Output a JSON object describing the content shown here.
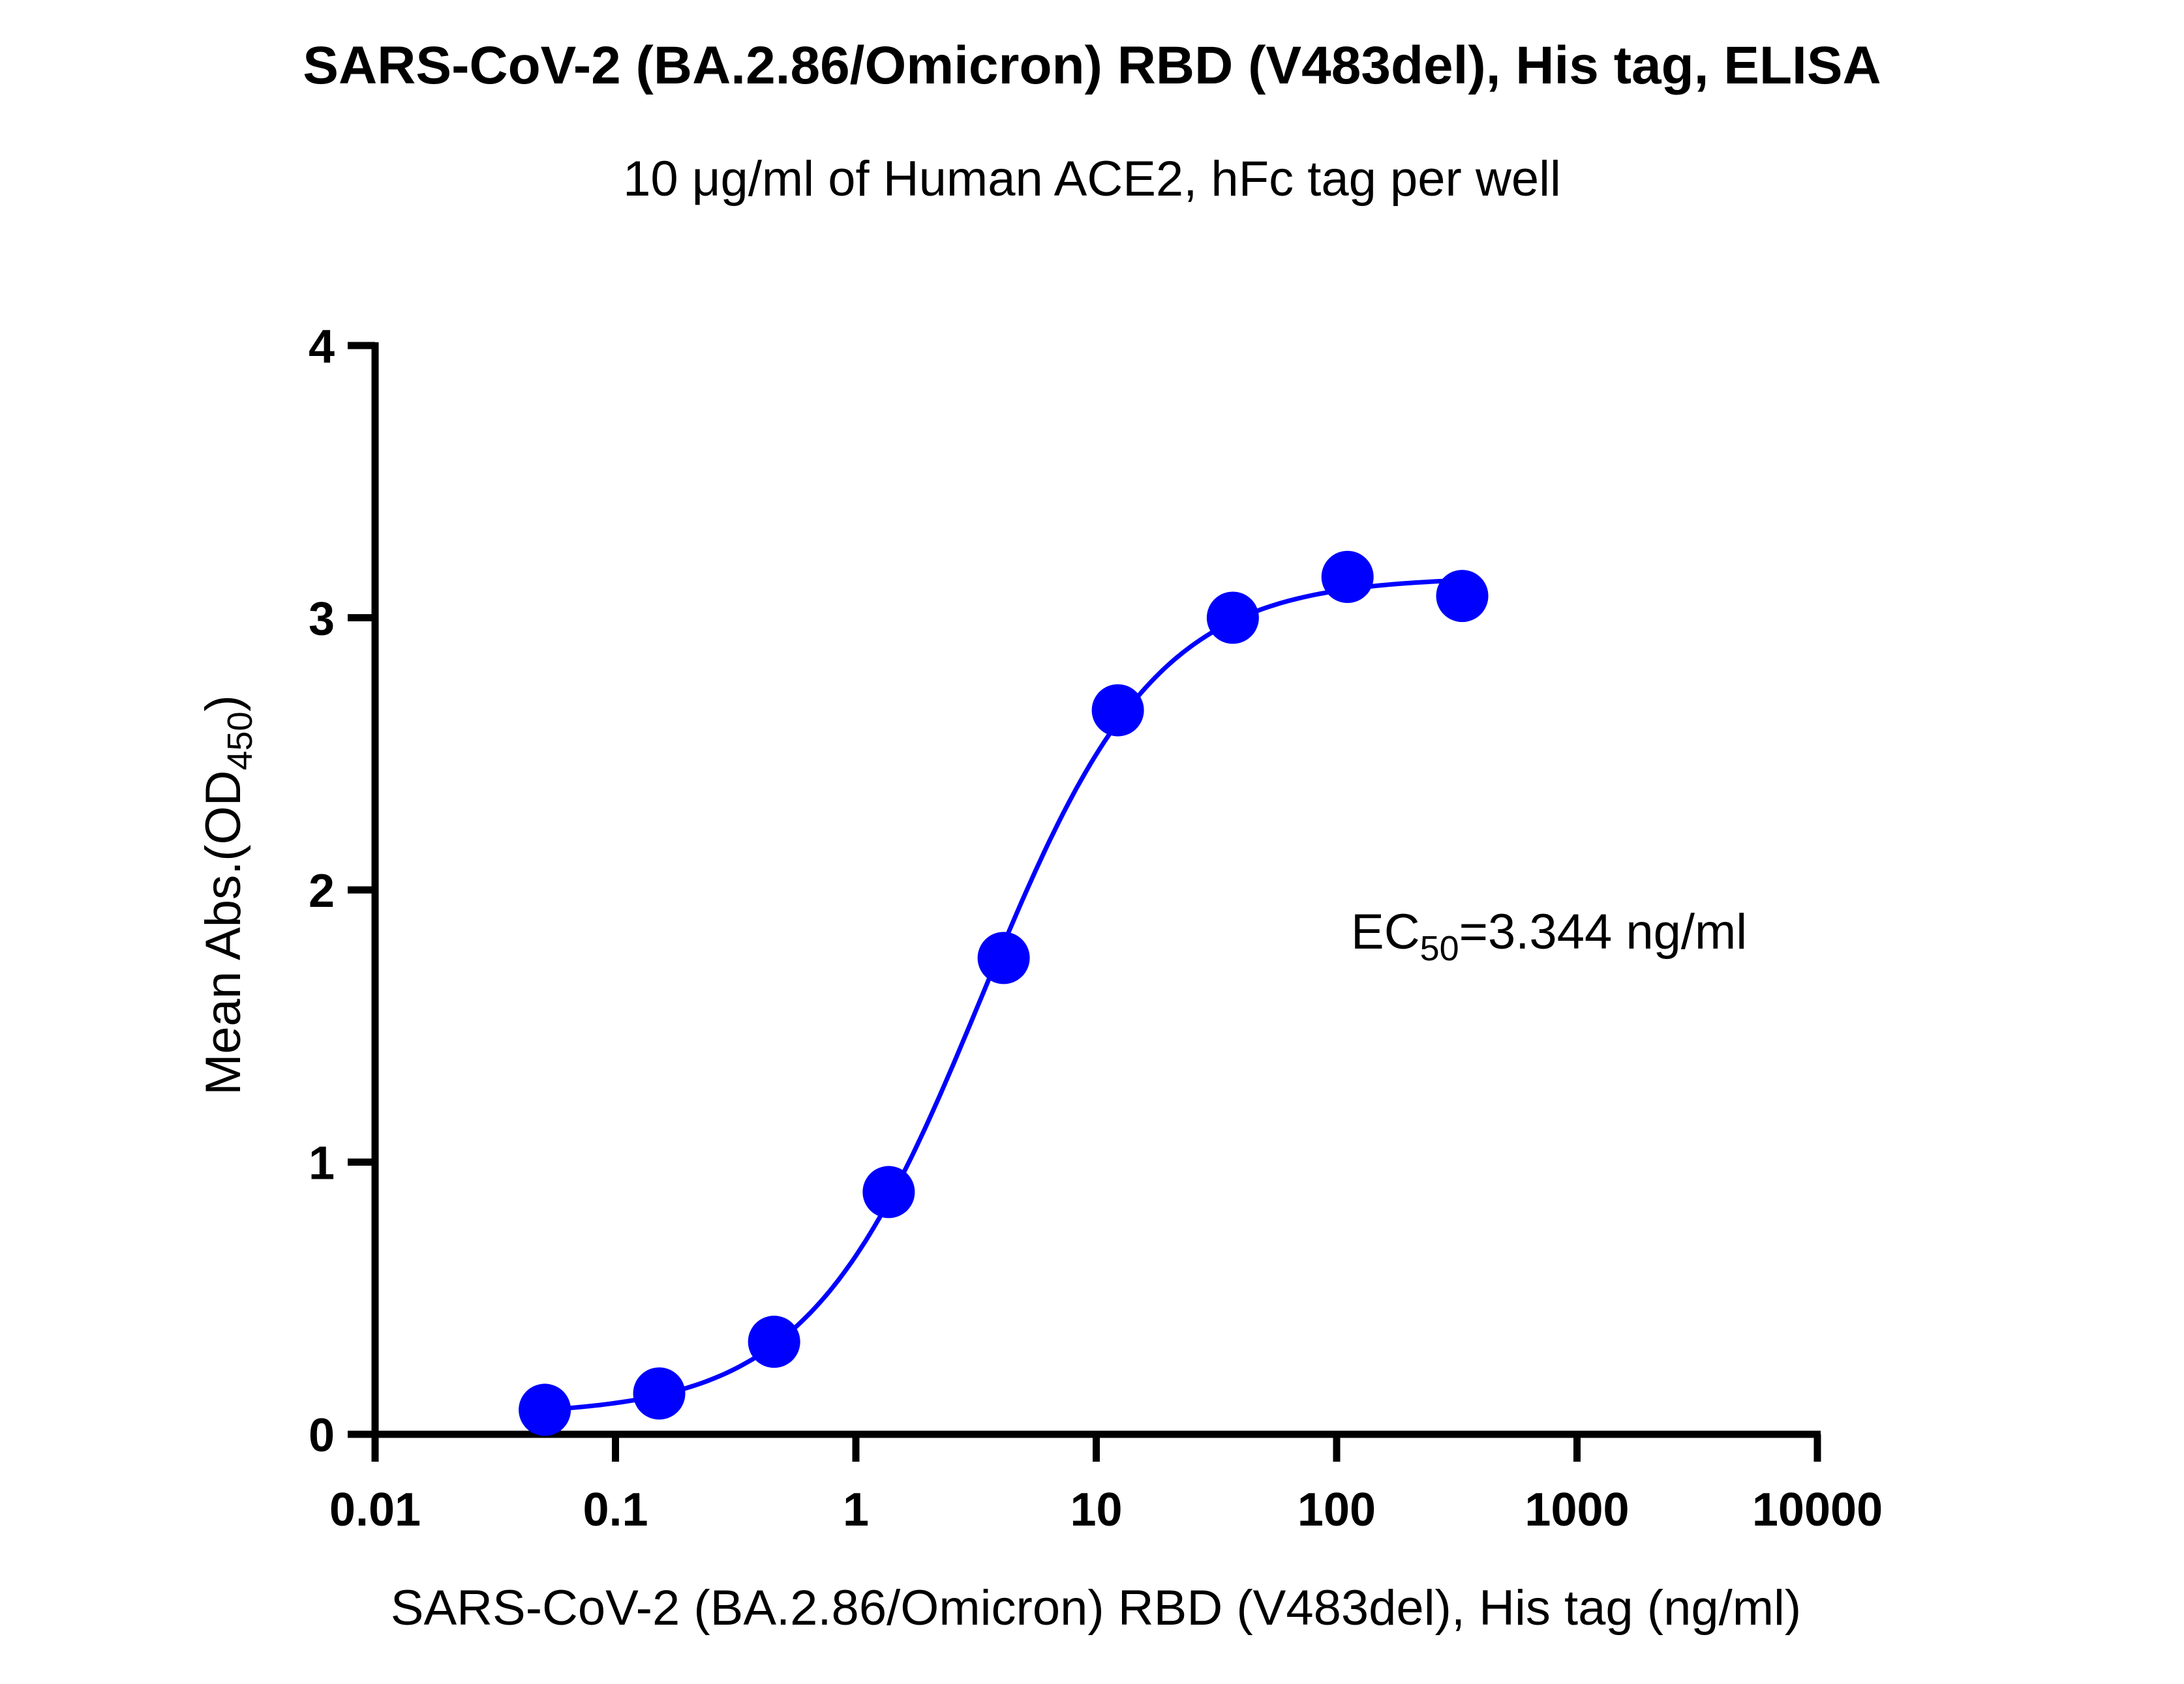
{
  "chart_data": {
    "type": "scatter",
    "title": "SARS-CoV-2 (BA.2.86/Omicron) RBD (V483del), His tag, ELISA",
    "subtitle": "10 μg/ml of Human ACE2, hFc tag per well",
    "xlabel": "SARS-CoV-2 (BA.2.86/Omicron) RBD (V483del), His tag (ng/ml)",
    "ylabel_main": "Mean Abs.(OD",
    "ylabel_sub": "450",
    "ylabel_end": ")",
    "xscale": "log",
    "xlim": [
      0.01,
      10000
    ],
    "ylim": [
      0,
      4
    ],
    "xticks": [
      0.01,
      0.1,
      1,
      10,
      100,
      1000,
      10000
    ],
    "xtick_labels": [
      "0.01",
      "0.1",
      "1",
      "10",
      "100",
      "1000",
      "10000"
    ],
    "yticks": [
      0,
      1,
      2,
      3,
      4
    ],
    "ytick_labels": [
      "0",
      "1",
      "2",
      "3",
      "4"
    ],
    "grid": false,
    "series": [
      {
        "name": "Mean Abs",
        "color": "#0000ff",
        "x": [
          0.0508,
          0.152,
          0.457,
          1.37,
          4.12,
          12.3,
          37.0,
          111,
          333
        ],
        "y": [
          0.09,
          0.15,
          0.34,
          0.89,
          1.75,
          2.66,
          3.0,
          3.15,
          3.08
        ]
      }
    ],
    "fit": {
      "model": "4PL",
      "bottom": 0.07,
      "top": 3.15,
      "ec50": 3.344,
      "hill": 1.2
    },
    "annotation": {
      "prefix": "EC",
      "sub": "50",
      "suffix": "=3.344 ng/ml"
    }
  }
}
